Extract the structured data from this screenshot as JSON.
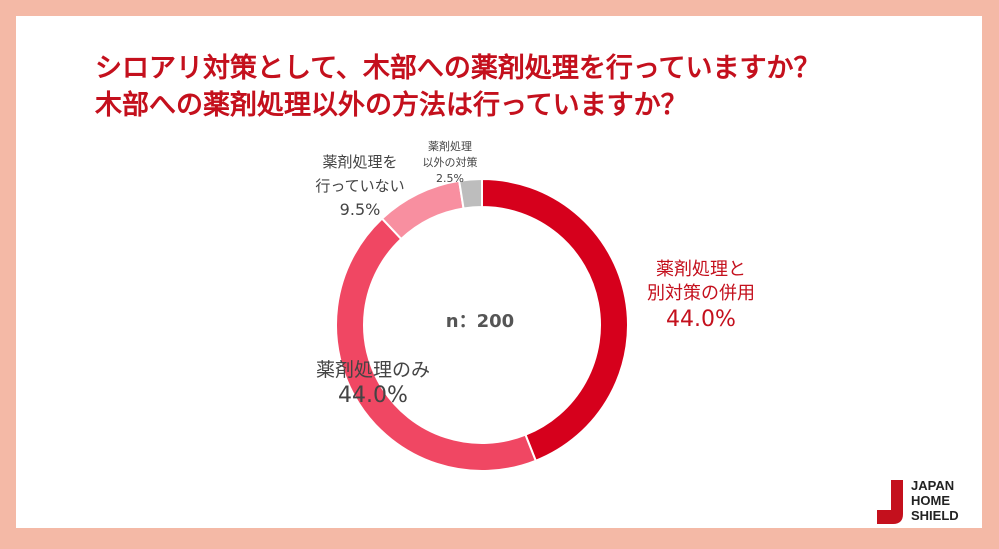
{
  "title": {
    "line1": "シロアリ対策として、木部への薬剤処理を行っていますか？",
    "line2": "木部への薬剤処理以外の方法は行っていますか？"
  },
  "chart_data": {
    "type": "pie",
    "title": "シロアリ対策として、木部への薬剤処理を行っていますか？ 木部への薬剤処理以外の方法は行っていますか？",
    "center_label": "n：200",
    "slices": [
      {
        "label_lines": [
          "薬剤処理と",
          "別対策の併用"
        ],
        "value": 44.0,
        "value_text": "44.0%",
        "color": "#d6001c"
      },
      {
        "label_lines": [
          "薬剤処理のみ"
        ],
        "value": 44.0,
        "value_text": "44.0%",
        "color": "#f04763"
      },
      {
        "label_lines": [
          "薬剤処理を",
          "行っていない"
        ],
        "value": 9.5,
        "value_text": "9.5%",
        "color": "#f88fa0"
      },
      {
        "label_lines": [
          "薬剤処理",
          "以外の対策"
        ],
        "value": 2.5,
        "value_text": "2.5%",
        "color": "#bdbdbd"
      }
    ]
  },
  "logo": {
    "line1": "JAPAN",
    "line2": "HOME",
    "line3": "SHIELD",
    "color": "#c4101d"
  }
}
